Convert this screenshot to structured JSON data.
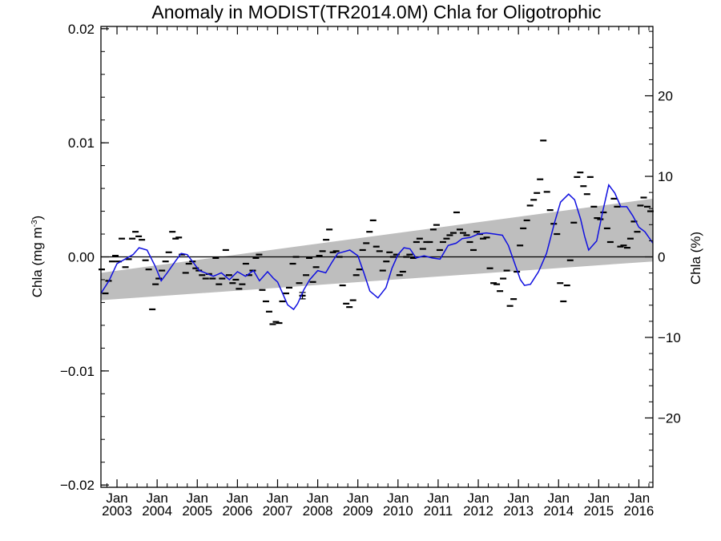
{
  "chart_data": {
    "type": "line",
    "title": "Anomaly in MODIST(TR2014.0M) Chla for Oligotrophic",
    "ylabel_left": "Chla (mg m",
    "ylabel_left_sup": "-3",
    "ylabel_left_close": ")",
    "ylabel_right": "Chla (%)",
    "xlim": [
      2002.6,
      2016.35
    ],
    "ylim": [
      -0.0202,
      0.0202
    ],
    "yticks": [
      {
        "value": 0.02,
        "label": "0.02"
      },
      {
        "value": 0.01,
        "label": "0.01"
      },
      {
        "value": 0,
        "label": "0.00"
      },
      {
        "value": -0.01,
        "label": "−0.01"
      },
      {
        "value": -0.02,
        "label": "−0.02"
      }
    ],
    "y2ticks": [
      {
        "value": 0.01412,
        "label": "20"
      },
      {
        "value": 0.00706,
        "label": "10"
      },
      {
        "value": 0,
        "label": "0"
      },
      {
        "value": -0.00706,
        "label": "−10"
      },
      {
        "value": -0.01412,
        "label": "−20"
      }
    ],
    "xticks": [
      {
        "value": 2003,
        "month": "Jan",
        "year": "2003"
      },
      {
        "value": 2004,
        "month": "Jan",
        "year": "2004"
      },
      {
        "value": 2005,
        "month": "Jan",
        "year": "2005"
      },
      {
        "value": 2006,
        "month": "Jan",
        "year": "2006"
      },
      {
        "value": 2007,
        "month": "Jan",
        "year": "2007"
      },
      {
        "value": 2008,
        "month": "Jan",
        "year": "2008"
      },
      {
        "value": 2009,
        "month": "Jan",
        "year": "2009"
      },
      {
        "value": 2010,
        "month": "Jan",
        "year": "2010"
      },
      {
        "value": 2011,
        "month": "Jan",
        "year": "2011"
      },
      {
        "value": 2012,
        "month": "Jan",
        "year": "2012"
      },
      {
        "value": 2013,
        "month": "Jan",
        "year": "2013"
      },
      {
        "value": 2014,
        "month": "Jan",
        "year": "2014"
      },
      {
        "value": 2015,
        "month": "Jan",
        "year": "2015"
      },
      {
        "value": 2016,
        "month": "Jan",
        "year": "2016"
      }
    ],
    "trend_band": {
      "x": [
        2002.6,
        2016.35
      ],
      "lower": [
        -0.0038,
        -0.0004
      ],
      "upper": [
        -0.0014,
        0.0051
      ]
    },
    "smoothed_series": {
      "x": [
        2002.6,
        2002.8,
        2003.0,
        2003.2,
        2003.4,
        2003.55,
        2003.75,
        2003.95,
        2004.1,
        2004.25,
        2004.45,
        2004.6,
        2004.75,
        2004.9,
        2005.05,
        2005.2,
        2005.4,
        2005.6,
        2005.8,
        2006.0,
        2006.2,
        2006.4,
        2006.55,
        2006.75,
        2006.9,
        2007.0,
        2007.1,
        2007.25,
        2007.4,
        2007.5,
        2007.65,
        2007.8,
        2008.0,
        2008.2,
        2008.35,
        2008.5,
        2008.6,
        2008.8,
        2009.0,
        2009.15,
        2009.3,
        2009.5,
        2009.7,
        2009.85,
        2010.0,
        2010.15,
        2010.3,
        2010.45,
        2010.65,
        2010.85,
        2011.05,
        2011.25,
        2011.45,
        2011.6,
        2011.8,
        2012.0,
        2012.2,
        2012.4,
        2012.6,
        2012.75,
        2012.9,
        2013.05,
        2013.15,
        2013.3,
        2013.5,
        2013.7,
        2013.9,
        2014.05,
        2014.25,
        2014.4,
        2014.55,
        2014.65,
        2014.75,
        2014.85,
        2014.95,
        2015.1,
        2015.25,
        2015.4,
        2015.55,
        2015.7,
        2015.85,
        2016.0,
        2016.15,
        2016.35
      ],
      "y": [
        -0.0032,
        -0.0021,
        -0.0006,
        -0.0002,
        0.0002,
        0.0008,
        0.0006,
        -0.0008,
        -0.0021,
        -0.0014,
        -0.0004,
        0.0003,
        0.0002,
        -0.0005,
        -0.0012,
        -0.0014,
        -0.0017,
        -0.0014,
        -0.002,
        -0.0013,
        -0.0017,
        -0.0012,
        -0.0021,
        -0.0013,
        -0.0019,
        -0.0022,
        -0.003,
        -0.0042,
        -0.0046,
        -0.0041,
        -0.0029,
        -0.002,
        -0.0012,
        -0.0014,
        -0.0005,
        0.0003,
        0.0004,
        0.0006,
        0.0001,
        -0.0014,
        -0.003,
        -0.0036,
        -0.0027,
        -0.001,
        0.0002,
        0.0008,
        0.0007,
        -0.0001,
        0.0001,
        -0.0001,
        -0.0002,
        0.001,
        0.0012,
        0.0016,
        0.0017,
        0.002,
        0.0021,
        0.002,
        0.0019,
        0.001,
        -0.0005,
        -0.002,
        -0.0025,
        -0.0024,
        -0.0013,
        0.0003,
        0.003,
        0.0048,
        0.0055,
        0.005,
        0.0033,
        0.0018,
        0.0006,
        0.001,
        0.0014,
        0.004,
        0.0063,
        0.0056,
        0.0044,
        0.0044,
        0.0036,
        0.0026,
        0.0022,
        0.0012
      ],
      "color": "#1010e0"
    },
    "monthly_points": {
      "x": [
        2002.62,
        2002.71,
        2002.79,
        2002.88,
        2002.96,
        2003.04,
        2003.12,
        2003.21,
        2003.29,
        2003.38,
        2003.46,
        2003.54,
        2003.62,
        2003.71,
        2003.79,
        2003.88,
        2003.96,
        2004.04,
        2004.12,
        2004.21,
        2004.29,
        2004.38,
        2004.46,
        2004.54,
        2004.62,
        2004.71,
        2004.79,
        2004.88,
        2004.96,
        2005.04,
        2005.12,
        2005.21,
        2005.29,
        2005.38,
        2005.46,
        2005.54,
        2005.62,
        2005.71,
        2005.79,
        2005.88,
        2005.96,
        2006.04,
        2006.12,
        2006.21,
        2006.29,
        2006.38,
        2006.46,
        2006.54,
        2006.62,
        2006.71,
        2006.79,
        2006.88,
        2006.96,
        2007.04,
        2007.12,
        2007.21,
        2007.29,
        2007.38,
        2007.46,
        2007.54,
        2007.62,
        2007.71,
        2007.79,
        2007.88,
        2007.96,
        2008.04,
        2008.12,
        2008.21,
        2008.29,
        2008.38,
        2008.46,
        2008.54,
        2008.62,
        2008.71,
        2008.79,
        2008.88,
        2008.96,
        2009.04,
        2009.12,
        2009.21,
        2009.29,
        2009.38,
        2009.46,
        2009.54,
        2009.62,
        2009.71,
        2009.79,
        2009.88,
        2009.96,
        2010.04,
        2010.12,
        2010.21,
        2010.29,
        2010.38,
        2010.46,
        2010.54,
        2010.62,
        2010.71,
        2010.79,
        2010.88,
        2010.96,
        2011.04,
        2011.12,
        2011.21,
        2011.29,
        2011.38,
        2011.46,
        2011.54,
        2011.62,
        2011.71,
        2011.79,
        2011.88,
        2011.96,
        2012.04,
        2012.12,
        2012.21,
        2012.29,
        2012.38,
        2012.46,
        2012.54,
        2012.62,
        2012.71,
        2012.79,
        2012.88,
        2012.96,
        2013.04,
        2013.12,
        2013.21,
        2013.29,
        2013.38,
        2013.46,
        2013.54,
        2013.62,
        2013.71,
        2013.79,
        2013.88,
        2013.96,
        2014.04,
        2014.12,
        2014.21,
        2014.29,
        2014.38,
        2014.46,
        2014.54,
        2014.62,
        2014.71,
        2014.79,
        2014.88,
        2014.96,
        2015.04,
        2015.12,
        2015.21,
        2015.29,
        2015.38,
        2015.46,
        2015.54,
        2015.62,
        2015.71,
        2015.79,
        2015.88,
        2015.96,
        2016.04,
        2016.12,
        2016.21,
        2016.29
      ],
      "y": [
        -0.0011,
        -0.0032,
        -0.0021,
        -0.0004,
        0.0001,
        -0.0004,
        0.0016,
        -0.0009,
        -0.0002,
        0.0016,
        0.0022,
        0.0018,
        0.0015,
        -0.0003,
        -0.0011,
        -0.0046,
        -0.0024,
        -0.0019,
        -0.0012,
        -0.0004,
        0.0004,
        0.0022,
        0.0016,
        0.0017,
        0.0002,
        -0.0014,
        -0.0006,
        -0.0004,
        -0.001,
        -0.0012,
        -0.0016,
        -0.0019,
        -0.0015,
        -0.0019,
        -0.0001,
        -0.0024,
        -0.0019,
        0.0006,
        -0.0016,
        -0.0023,
        -0.002,
        -0.0028,
        -0.0024,
        -0.0006,
        -0.0016,
        -0.0012,
        -0.0001,
        0.0002,
        -0.0029,
        -0.0039,
        -0.0048,
        -0.0059,
        -0.0057,
        -0.0058,
        -0.0039,
        -0.0032,
        -0.0027,
        -0.0006,
        0.0,
        -0.0023,
        -0.0034,
        -0.0016,
        -0.0001,
        -0.0022,
        -0.0009,
        0.0001,
        0.0005,
        0.0015,
        0.0024,
        0.0004,
        0.0005,
        0.0,
        -0.0025,
        -0.0041,
        -0.0044,
        -0.0038,
        -0.0016,
        -0.0011,
        0.0006,
        0.0012,
        0.0022,
        0.0032,
        0.0009,
        0.0005,
        -0.0012,
        -0.0004,
        0.0004,
        0.0,
        0.0002,
        -0.0016,
        -0.0013,
        0.0,
        0.0002,
        -0.0001,
        0.0013,
        0.0016,
        0.0007,
        0.0013,
        0.0013,
        0.0024,
        0.0028,
        0.0006,
        0.0013,
        0.0016,
        0.0019,
        0.0021,
        0.0039,
        0.0024,
        0.0021,
        0.0019,
        0.0013,
        0.0006,
        0.0022,
        0.002,
        0.0016,
        0.0017,
        -0.001,
        -0.0023,
        -0.0024,
        -0.003,
        -0.0019,
        -0.0012,
        -0.0043,
        -0.0037,
        -0.0013,
        0.001,
        0.0025,
        0.0032,
        0.0045,
        0.005,
        0.0056,
        0.0068,
        0.0102,
        0.0057,
        0.0041,
        0.0029,
        0.002,
        -0.0023,
        -0.0039,
        -0.0025,
        -0.0003,
        0.003,
        0.007,
        0.0074,
        0.0062,
        0.0055,
        0.007,
        0.0044,
        0.0034,
        0.0033,
        0.0039,
        0.0025,
        0.0013,
        0.0051,
        0.0044,
        0.0009,
        0.001,
        0.0008,
        0.0016,
        0.0031,
        0.0022,
        0.0045,
        0.0052,
        0.0044,
        0.004
      ]
    },
    "error_bar": {
      "x": 2007.62,
      "y": -0.0034
    },
    "zero_line": 0,
    "colors": {
      "band": "#bebebe",
      "axis": "#000000",
      "series": "#1010e0"
    }
  }
}
